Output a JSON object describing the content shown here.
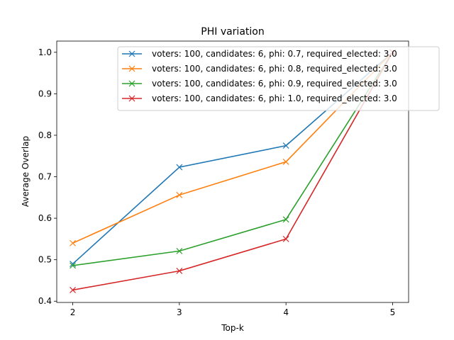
{
  "chart_data": {
    "type": "line",
    "title": "PHI variation",
    "xlabel": "Top-k",
    "ylabel": "Average Overlap",
    "x": [
      2,
      3,
      4,
      5
    ],
    "xlim": [
      1.85,
      5.15
    ],
    "ylim": [
      0.397,
      1.027
    ],
    "xticks": [
      "2",
      "3",
      "4",
      "5"
    ],
    "yticks": [
      "0.4",
      "0.5",
      "0.6",
      "0.7",
      "0.8",
      "0.9",
      "1.0"
    ],
    "grid": false,
    "legend_position": "top-right",
    "marker": "x",
    "series": [
      {
        "name": "voters: 100, candidates: 6, phi: 0.7, required_elected: 3.0",
        "color": "#1f77b4",
        "values": [
          0.49,
          0.723,
          0.775,
          1.0
        ]
      },
      {
        "name": "voters: 100, candidates: 6, phi: 0.8, required_elected: 3.0",
        "color": "#ff7f0e",
        "values": [
          0.54,
          0.656,
          0.736,
          1.0
        ]
      },
      {
        "name": "voters: 100, candidates: 6, phi: 0.9, required_elected: 3.0",
        "color": "#2ca02c",
        "values": [
          0.486,
          0.521,
          0.597,
          1.0
        ]
      },
      {
        "name": "voters: 100, candidates: 6, phi: 1.0, required_elected: 3.0",
        "color": "#d62728",
        "values": [
          0.427,
          0.473,
          0.55,
          1.0
        ]
      }
    ]
  }
}
